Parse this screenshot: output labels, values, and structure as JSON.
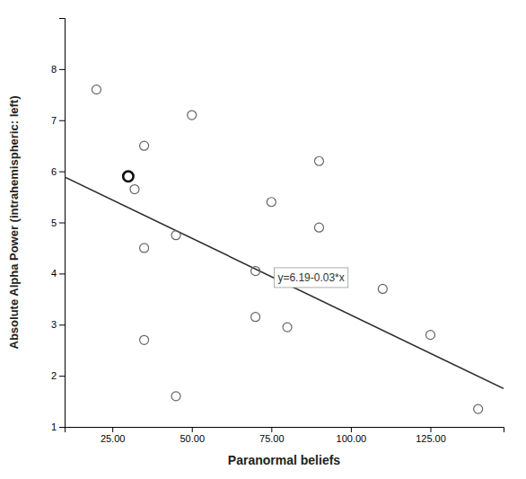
{
  "chart_data": {
    "type": "scatter",
    "xlabel": "Paranormal beliefs",
    "ylabel": "Absolute Alpha Power (intrahemispheric: left)",
    "xlim": [
      10,
      148
    ],
    "ylim": [
      1,
      9
    ],
    "xticks": [
      {
        "value": 25.0,
        "label": "25.00"
      },
      {
        "value": 50.0,
        "label": "50.00"
      },
      {
        "value": 75.0,
        "label": "75.00"
      },
      {
        "value": 100.0,
        "label": "100.00"
      },
      {
        "value": 125.0,
        "label": "125.00"
      }
    ],
    "yticks": [
      1,
      2,
      3,
      4,
      5,
      6,
      7,
      8
    ],
    "grid": false,
    "series": [
      {
        "type": "scatter",
        "marker": "open-circle",
        "color": "#666666",
        "x": [
          20,
          30,
          32,
          35,
          35,
          35,
          45,
          45,
          50,
          70,
          70,
          75,
          80,
          90,
          90,
          110,
          125,
          140
        ],
        "values": [
          7.6,
          5.9,
          5.65,
          6.5,
          4.5,
          2.7,
          4.75,
          1.6,
          7.1,
          4.05,
          3.15,
          5.4,
          2.95,
          6.2,
          4.9,
          3.7,
          2.8,
          1.35
        ]
      },
      {
        "type": "scatter",
        "marker": "bold-circle",
        "color": "#111111",
        "x": [
          30
        ],
        "values": [
          5.9
        ]
      },
      {
        "type": "line",
        "line_style": "solid",
        "color": "#2d2d2d",
        "x": [
          10,
          148
        ],
        "values": [
          5.89,
          1.75
        ]
      }
    ],
    "annotations": [
      {
        "text": "y=6.19-0.03*x",
        "x": 77,
        "y": 3.92
      }
    ]
  }
}
